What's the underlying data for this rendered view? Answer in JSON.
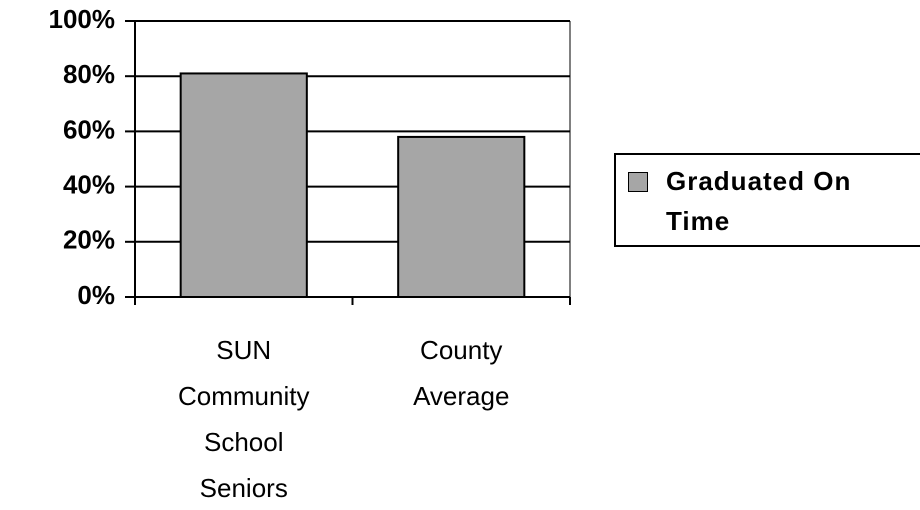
{
  "chart_data": {
    "type": "bar",
    "categories": [
      "SUN Community School Seniors",
      "County Average"
    ],
    "series": [
      {
        "name": "Graduated On Time",
        "color": "#a6a6a6",
        "values": [
          81,
          58
        ]
      }
    ],
    "ylim": [
      0,
      100
    ],
    "yticks": [
      {
        "value": 0,
        "label": "0%"
      },
      {
        "value": 20,
        "label": "20%"
      },
      {
        "value": 40,
        "label": "40%"
      },
      {
        "value": 60,
        "label": "60%"
      },
      {
        "value": 80,
        "label": "80%"
      },
      {
        "value": 100,
        "label": "100%"
      }
    ],
    "grid": true,
    "legend": "right"
  }
}
